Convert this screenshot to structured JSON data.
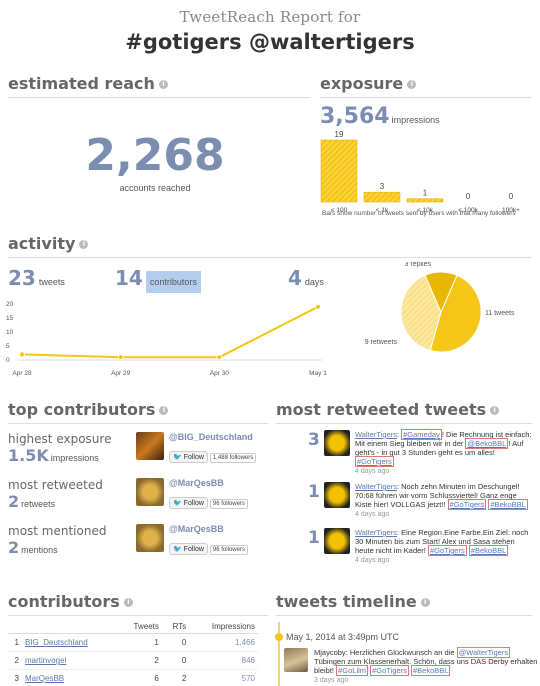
{
  "header": {
    "subtitle": "TweetReach Report for",
    "title": "#gotigers @waltertigers"
  },
  "sections": {
    "estimated_reach": "estimated reach",
    "exposure": "exposure",
    "activity": "activity",
    "top_contributors": "top contributors",
    "most_retweeted": "most retweeted tweets",
    "contributors": "contributors",
    "timeline": "tweets timeline"
  },
  "info_icon": "i",
  "reach": {
    "value": "2,268",
    "label": "accounts reached"
  },
  "exposure": {
    "value": "3,564",
    "label": "impressions",
    "caption": "Bars show number of tweets sent by users with that many followers"
  },
  "chart_data": [
    {
      "type": "bar",
      "categories": [
        "< 100",
        "< 1k",
        "< 10k",
        "< 100k",
        "100k+"
      ],
      "values": [
        19,
        3,
        1,
        0,
        0
      ],
      "xlabel": "",
      "ylabel": ""
    },
    {
      "type": "line",
      "x": [
        "Apr 28",
        "Apr 29",
        "Apr 30",
        "May 1"
      ],
      "y": [
        2,
        1,
        1,
        19
      ],
      "ylim": [
        0,
        20
      ],
      "yticks": [
        "0",
        "5",
        "10",
        "15",
        "20"
      ],
      "grid": false
    },
    {
      "type": "pie",
      "categories": [
        "11 tweets",
        "9 retweets",
        "3 replies"
      ],
      "values": [
        11,
        9,
        3
      ]
    }
  ],
  "activity": {
    "tweets": {
      "value": "23",
      "label": "tweets"
    },
    "contributors": {
      "value": "14",
      "label": "contributors"
    },
    "days": {
      "value": "4",
      "label": "days"
    }
  },
  "top_contributors": [
    {
      "label": "highest exposure",
      "value": "1.5K",
      "unit": "impressions",
      "user": "@BIG_Deutschland",
      "follow": "Follow",
      "followers": "1,488 followers"
    },
    {
      "label": "most retweeted",
      "value": "2",
      "unit": "retweets",
      "user": "@MarQesBB",
      "follow": "Follow",
      "followers": "96 followers"
    },
    {
      "label": "most mentioned",
      "value": "2",
      "unit": "mentions",
      "user": "@MarQesBB",
      "follow": "Follow",
      "followers": "96 followers"
    }
  ],
  "retweeted": [
    {
      "count": "3",
      "user": "WalterTigers",
      "text": ": ",
      "tag1": "#Gameday",
      "text2": "! Die Rechnung ist einfach: Mit einem Sieg bleiben wir in der ",
      "tag2": "@BekoBBL",
      "text3": "! Auf geht's - in gut 3 Stunden geht es um alles! ",
      "tag3": "#GoTigers",
      "ago": "4 days ago"
    },
    {
      "count": "1",
      "user": "WalterTigers",
      "text": ": Noch zehn Minuten im Deschungel! 70:68 führen wir vorm Schlussviertel! Ganz enge Kiste hier! VOLLGAS jetzt!! ",
      "tag1": "#GoTigers",
      "tag2": "#BekoBBL",
      "ago": "4 days ago"
    },
    {
      "count": "1",
      "user": "WalterTigers",
      "text": ": Eine Region.Eine Farbe.Ein Ziel: noch 30 Minuten bis zum Start! Alex und Sasa stehen heute nicht im Kader! ",
      "tag1": "#GoTigers",
      "tag2": "#BekoBBL",
      "ago": "4 days ago"
    }
  ],
  "contributors_table": {
    "headers": [
      "Tweets",
      "RTs",
      "Impressions"
    ],
    "rows": [
      {
        "rank": "1",
        "name": "BIG_Deutschland",
        "tweets": "1",
        "rts": "0",
        "impressions": "1,466"
      },
      {
        "rank": "2",
        "name": "martinvogel",
        "tweets": "2",
        "rts": "0",
        "impressions": "846"
      },
      {
        "rank": "3",
        "name": "MarQesBB",
        "tweets": "6",
        "rts": "2",
        "impressions": "570"
      }
    ]
  },
  "timeline": {
    "date": "May 1, 2014 at 3:49pm UTC",
    "user": "Mjaycoby",
    "text": ": Herzlichen Glückwunsch an die ",
    "mention": "@WalterTigers",
    "text2": " Tübingen zum Klassenerhalt. Schön, dass uns DAS Derby erhalten bleibt! ",
    "tag1": "#GoLilm",
    "tag2": "#GoTigers",
    "tag3": "#BekoBBL",
    "ago": "3 days ago"
  },
  "colors": {
    "accent": "#7b8db0",
    "bar": "#f5c518",
    "pie1": "#f5c518",
    "pie2": "#f9e08a",
    "pie3": "#e8b800"
  }
}
